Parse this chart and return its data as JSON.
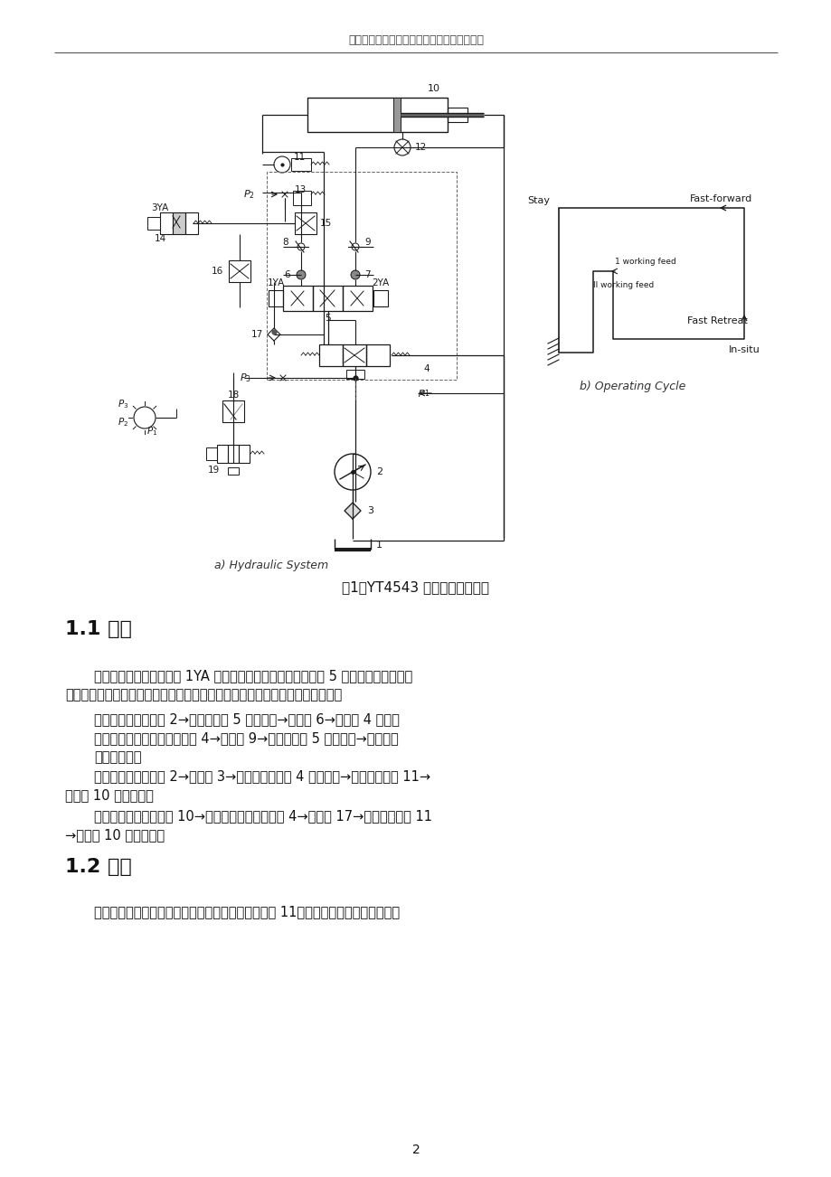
{
  "page_width": 9.2,
  "page_height": 13.02,
  "dpi": 100,
  "bg": "#ffffff",
  "header": "四川大学锦江学院毕业论文（设计）外文译文",
  "figure_caption": "图1：YT4543 动力滑台液压系统",
  "sub_caption_a": "a) Hydraulic System",
  "sub_caption_b": "b) Operating Cycle",
  "sec11": "1.1 快进",
  "sec12": "1.2 进给",
  "p1_l1": "按下启动按钮，让电磁铁 1YA 收取电费和左框架阀电磁换向阀 5 到系统的访问，控制",
  "p1_l2": "油机液压换向阀阀芯使阀门离开进入系统工作。可以被指定为以下的控制油路。",
  "ind1": "进油路：单向变量泵 2→电磁换向阀 5 的左框架→单向阀 6→换向阀 4 左腔；",
  "ind2": "出口油路：左腔的液压换向阀 4→节流阀 9→电磁换向阀 5 的左框架→石油盒；",
  "ind3": "主油路如下：",
  "ind4a": "进油路：单向变量泵 2→单向阀 3→液压方向控制阀 4 的左侧的→右侧的动作阀 11→",
  "ind4b": "液压缸 10 的左腔室；",
  "ind5a": "清仓油路：液压缸右腔 10→左侧的液压方向控制阀 4→单向阀 17→右侧的动作阀 11",
  "ind5b": "→液压缸 10 的左腔室。",
  "p2": "当滑动台达到所需的位置，快进，旅行铁块压行程阀 11，使左框架对系统的访问，快",
  "page_num": "2"
}
